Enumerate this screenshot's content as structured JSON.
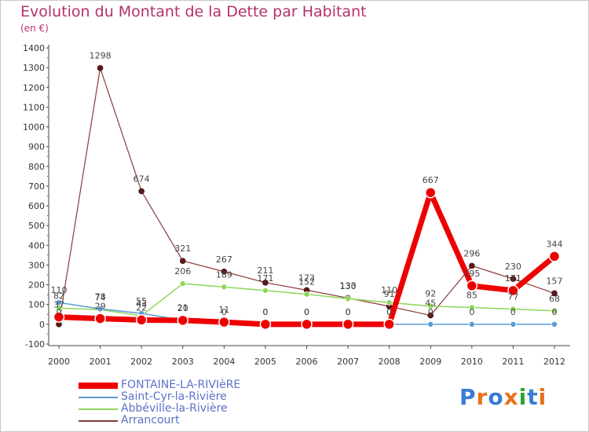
{
  "header": {
    "title": "Evolution du Montant de la Dette par Habitant",
    "subtitle": "(en €)"
  },
  "colors": {
    "axis": "#444444",
    "grid": "#e0e0e0",
    "title": "#b5306b",
    "legend_text": "#5b72c7"
  },
  "logo": {
    "letters": [
      "P",
      "r",
      "o",
      "x",
      "i",
      "t",
      "i"
    ],
    "colors": [
      "#3a7bd5",
      "#e8701a",
      "#3a7bd5",
      "#e8701a",
      "#2aa52a",
      "#3a7bd5",
      "#e8701a"
    ]
  },
  "chart_data": {
    "type": "line",
    "title": "Evolution du Montant de la Dette par Habitant",
    "subtitle": "(en €)",
    "xlabel": "",
    "ylabel": "",
    "ylim": [
      -100,
      1400
    ],
    "ytick_step": 100,
    "grid": false,
    "legend_position": "bottom-left",
    "categories": [
      "2000",
      "2001",
      "2002",
      "2003",
      "2004",
      "2005",
      "2006",
      "2007",
      "2008",
      "2009",
      "2010",
      "2011",
      "2012"
    ],
    "series": [
      {
        "name": "FONTAINE-LA-RIVIèRE",
        "color": "#ee0000",
        "values": [
          37,
          29,
          22,
          20,
          11,
          0,
          0,
          0,
          0,
          667,
          195,
          171,
          344
        ],
        "labels": [
          "37",
          "29",
          "22",
          "20",
          "11",
          "0",
          "0",
          "0",
          "0",
          "667",
          "195",
          "171",
          "344"
        ]
      },
      {
        "name": "Saint-Cyr-la-Rivière",
        "color": "#5b9bd5",
        "values": [
          110,
          78,
          55,
          21,
          0,
          0,
          0,
          0,
          0,
          0,
          0,
          0,
          0
        ],
        "labels": [
          "110",
          "78",
          "55",
          "21",
          "0",
          "0",
          "0",
          "0",
          "0",
          "0",
          "0",
          "0",
          "0"
        ]
      },
      {
        "name": "Abbéville-la-Rivière",
        "color": "#8fd65a",
        "values": [
          82,
          74,
          43,
          206,
          189,
          171,
          152,
          130,
          110,
          92,
          85,
          77,
          68
        ],
        "labels": [
          "82",
          "74",
          "43",
          "206",
          "189",
          "171",
          "152",
          "130",
          "110",
          "92",
          "85",
          "77",
          "68"
        ]
      },
      {
        "name": "Arrancourt",
        "color": "#8b3a3a",
        "values": [
          0,
          1298,
          674,
          321,
          267,
          211,
          173,
          133,
          91,
          45,
          296,
          230,
          157
        ],
        "labels": [
          "0",
          "1298",
          "674",
          "321",
          "267",
          "211",
          "173",
          "133",
          "91",
          "45",
          "296",
          "230",
          "157"
        ]
      }
    ]
  }
}
